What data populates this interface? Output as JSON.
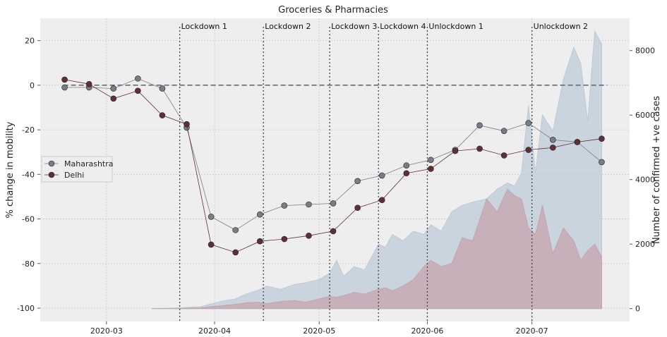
{
  "chart_data": {
    "type": "line",
    "title": "Groceries & Pharmacies",
    "xlabel": "",
    "ylabel": "% change in mobility",
    "ylabel_right": "Number of confirmed +ve cases",
    "x_ticks": [
      "2020-03",
      "2020-04",
      "2020-05",
      "2020-06",
      "2020-07"
    ],
    "y_ticks": [
      20,
      0,
      -20,
      -40,
      -60,
      -80,
      -100
    ],
    "y2_ticks": [
      8000,
      6000,
      4000,
      2000,
      0
    ],
    "xlim": [
      "2020-02-11",
      "2020-07-29"
    ],
    "ylim": [
      -106,
      30
    ],
    "y2lim": [
      -400,
      9000
    ],
    "grid": true,
    "legend_position": "center-left",
    "colors": {
      "maharashtra": "#7b7c86",
      "delhi": "#5e2f36",
      "maharashtra_cases": "#bccbd8",
      "delhi_cases": "#c5a4ae",
      "background": "#eeeeee",
      "grid": "#c9c9c9"
    },
    "baseline": 0,
    "events": [
      {
        "label": "Lockdown 1",
        "date": "2020-03-22"
      },
      {
        "label": "Lockdown 2",
        "date": "2020-04-15"
      },
      {
        "label": "Lockdown 3",
        "date": "2020-05-04"
      },
      {
        "label": "Lockdown 4",
        "date": "2020-05-18"
      },
      {
        "label": "Unlockdown 1",
        "date": "2020-06-01"
      },
      {
        "label": "Unlockdown 2",
        "date": "2020-07-01"
      }
    ],
    "series": [
      {
        "name": "Maharashtra",
        "x": [
          "2020-02-18",
          "2020-02-25",
          "2020-03-03",
          "2020-03-10",
          "2020-03-17",
          "2020-03-24",
          "2020-03-31",
          "2020-04-07",
          "2020-04-14",
          "2020-04-21",
          "2020-04-28",
          "2020-05-05",
          "2020-05-12",
          "2020-05-19",
          "2020-05-26",
          "2020-06-02",
          "2020-06-09",
          "2020-06-16",
          "2020-06-23",
          "2020-06-30",
          "2020-07-07",
          "2020-07-14",
          "2020-07-21"
        ],
        "values": [
          -1,
          -1,
          -1.5,
          3,
          -1.5,
          -19,
          -59,
          -65,
          -58,
          -54,
          -53.5,
          -53,
          -43,
          -40.5,
          -36,
          -33.5,
          -29,
          -18,
          -20.5,
          -17,
          -24.5,
          -25.5,
          -34.5
        ]
      },
      {
        "name": "Delhi",
        "x": [
          "2020-02-18",
          "2020-02-25",
          "2020-03-03",
          "2020-03-10",
          "2020-03-17",
          "2020-03-24",
          "2020-03-31",
          "2020-04-07",
          "2020-04-14",
          "2020-04-21",
          "2020-04-28",
          "2020-05-05",
          "2020-05-12",
          "2020-05-19",
          "2020-05-26",
          "2020-06-02",
          "2020-06-09",
          "2020-06-16",
          "2020-06-23",
          "2020-06-30",
          "2020-07-07",
          "2020-07-14",
          "2020-07-21"
        ],
        "values": [
          2.5,
          0.5,
          -6,
          -2.5,
          -13.5,
          -17.5,
          -71.5,
          -75,
          -70,
          -69,
          -67.5,
          -65.5,
          -55,
          -51.5,
          -39.5,
          -37.5,
          -29.5,
          -28.5,
          -31.5,
          -29,
          -28,
          -25.5,
          -24
        ]
      }
    ],
    "case_series": [
      {
        "name": "Maharashtra cases",
        "x": [
          "2020-03-14",
          "2020-03-21",
          "2020-03-28",
          "2020-03-31",
          "2020-04-04",
          "2020-04-07",
          "2020-04-10",
          "2020-04-13",
          "2020-04-16",
          "2020-04-20",
          "2020-04-24",
          "2020-04-27",
          "2020-05-01",
          "2020-05-04",
          "2020-05-06",
          "2020-05-08",
          "2020-05-11",
          "2020-05-14",
          "2020-05-18",
          "2020-05-20",
          "2020-05-22",
          "2020-05-25",
          "2020-05-28",
          "2020-05-31",
          "2020-06-02",
          "2020-06-05",
          "2020-06-08",
          "2020-06-11",
          "2020-06-14",
          "2020-06-18",
          "2020-06-21",
          "2020-06-24",
          "2020-06-26",
          "2020-06-28",
          "2020-06-30",
          "2020-07-02",
          "2020-07-04",
          "2020-07-07",
          "2020-07-10",
          "2020-07-13",
          "2020-07-15",
          "2020-07-17",
          "2020-07-19",
          "2020-07-21"
        ],
        "values": [
          0,
          20,
          60,
          150,
          250,
          300,
          450,
          550,
          700,
          600,
          750,
          800,
          900,
          1100,
          1500,
          1000,
          1300,
          1200,
          2000,
          1900,
          2300,
          2100,
          2400,
          2300,
          2600,
          2400,
          3000,
          3200,
          3300,
          3400,
          3700,
          3900,
          3800,
          4200,
          6300,
          4200,
          6000,
          5500,
          7100,
          8100,
          7600,
          5800,
          8600,
          8200
        ]
      },
      {
        "name": "Delhi cases",
        "x": [
          "2020-03-14",
          "2020-03-21",
          "2020-03-28",
          "2020-03-31",
          "2020-04-04",
          "2020-04-07",
          "2020-04-10",
          "2020-04-13",
          "2020-04-16",
          "2020-04-20",
          "2020-04-24",
          "2020-04-27",
          "2020-05-01",
          "2020-05-04",
          "2020-05-06",
          "2020-05-08",
          "2020-05-11",
          "2020-05-14",
          "2020-05-18",
          "2020-05-20",
          "2020-05-22",
          "2020-05-25",
          "2020-05-28",
          "2020-05-31",
          "2020-06-02",
          "2020-06-05",
          "2020-06-08",
          "2020-06-11",
          "2020-06-14",
          "2020-06-18",
          "2020-06-21",
          "2020-06-24",
          "2020-06-26",
          "2020-06-28",
          "2020-06-30",
          "2020-07-02",
          "2020-07-04",
          "2020-07-07",
          "2020-07-10",
          "2020-07-13",
          "2020-07-15",
          "2020-07-17",
          "2020-07-19",
          "2020-07-21"
        ],
        "values": [
          0,
          5,
          20,
          60,
          100,
          130,
          180,
          200,
          150,
          220,
          250,
          200,
          300,
          380,
          350,
          400,
          500,
          450,
          600,
          650,
          550,
          700,
          900,
          1300,
          1500,
          1300,
          1400,
          2200,
          2100,
          3400,
          3000,
          3700,
          3500,
          3400,
          2500,
          2300,
          3200,
          1700,
          2500,
          2100,
          1500,
          1800,
          2000,
          1600
        ]
      }
    ]
  }
}
